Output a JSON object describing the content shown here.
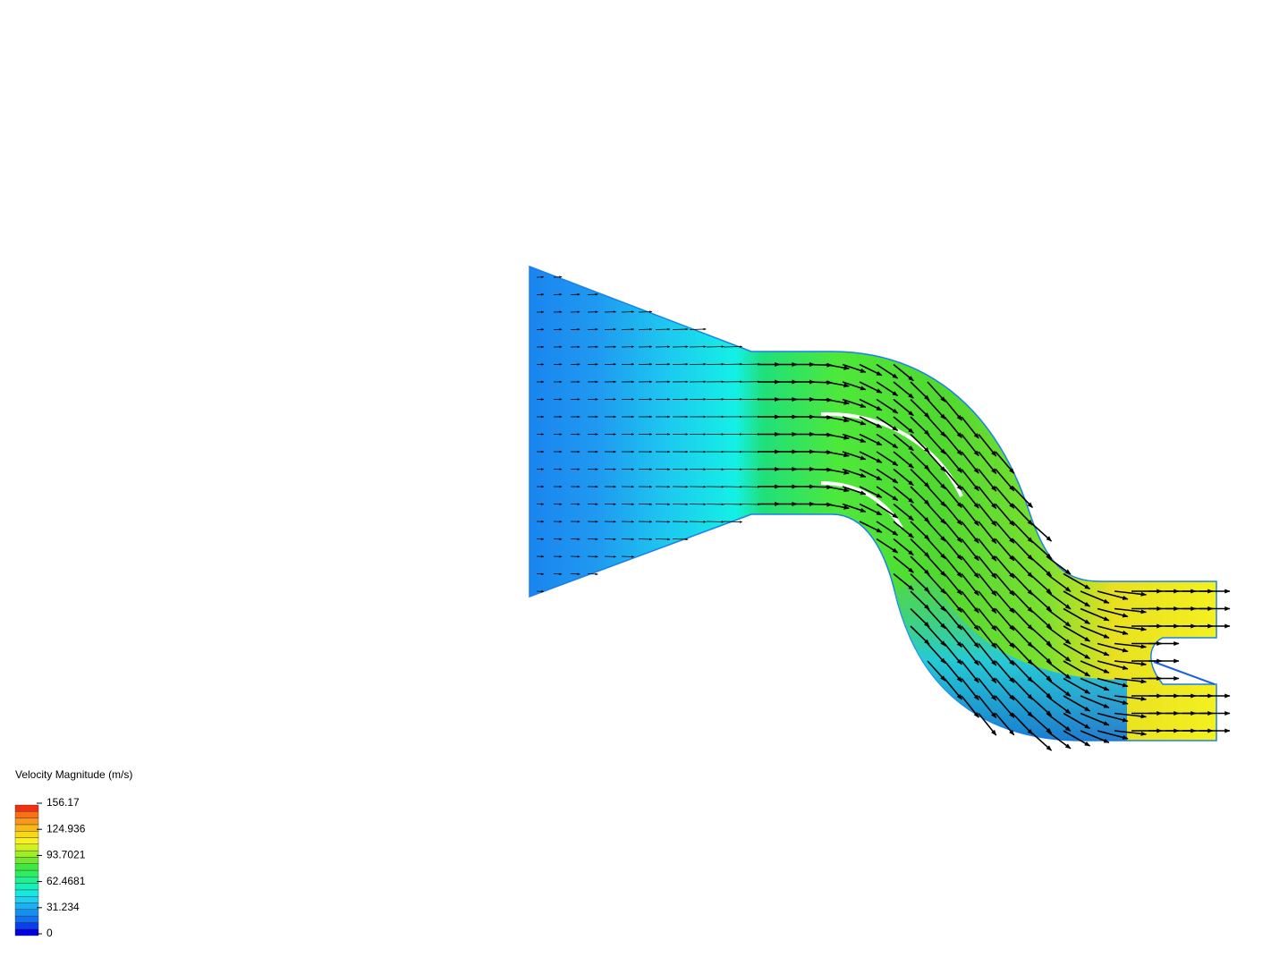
{
  "legend": {
    "title": "Velocity Magnitude (m/s)",
    "ticks": [
      "156.17",
      "124.936",
      "93.7021",
      "62.4681",
      "31.234",
      "0"
    ]
  }
}
